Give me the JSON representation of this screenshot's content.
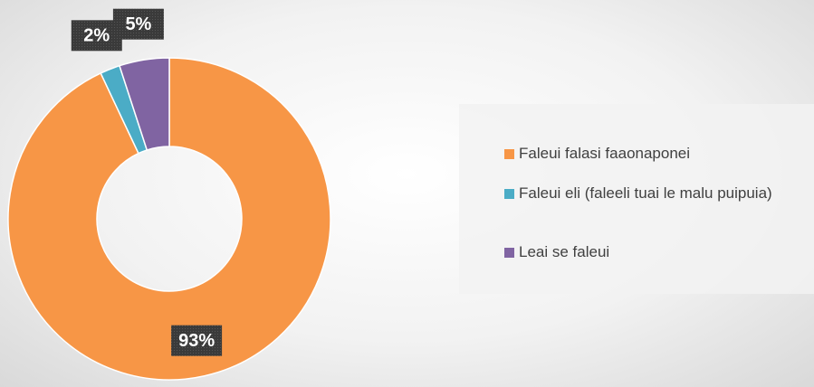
{
  "chart_data": {
    "type": "pie",
    "categories": [
      "Faleui falasi faaonaponei",
      "Faleui eli (faleeli tuai le malu puipuia)",
      "Leai se faleui"
    ],
    "values": [
      93,
      2,
      5
    ],
    "value_labels": [
      "93%",
      "2%",
      "5%"
    ],
    "colors": [
      "#f79646",
      "#4bacc6",
      "#8064a2"
    ],
    "donut": true,
    "legend": "right"
  }
}
